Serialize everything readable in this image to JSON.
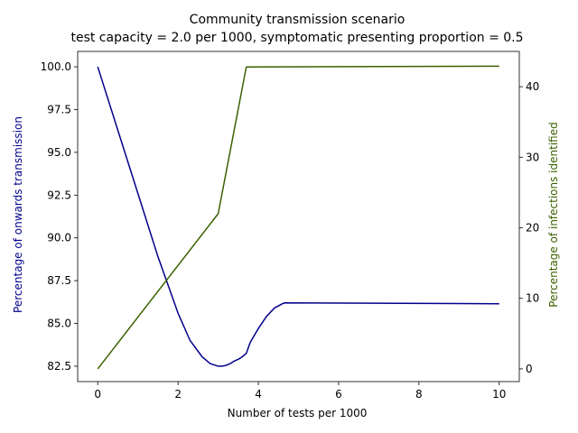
{
  "chart_data": {
    "type": "line",
    "title": "Community transmission scenario",
    "subtitle": "test capacity = 2.0 per 1000, symptomatic presenting proportion = 0.5",
    "xlabel": "Number of tests per 1000",
    "ylabel_left": "Percentage of onwards transmission",
    "ylabel_right": "Percentage of infections identified",
    "xlim": [
      -0.5,
      10.5
    ],
    "ylim_left": [
      81.6,
      100.9
    ],
    "ylim_right": [
      -1.8,
      45
    ],
    "x_ticks": [
      0,
      2,
      4,
      6,
      8,
      10
    ],
    "y_left_ticks": [
      82.5,
      85.0,
      87.5,
      90.0,
      92.5,
      95.0,
      97.5,
      100.0
    ],
    "y_left_tick_labels": [
      "82.5",
      "85.0",
      "87.5",
      "90.0",
      "92.5",
      "95.0",
      "97.5",
      "100.0"
    ],
    "y_right_ticks": [
      0,
      10,
      20,
      30,
      40
    ],
    "grid": false,
    "legend": "none",
    "series": [
      {
        "axis": "left",
        "color": "#00008b",
        "x": [
          0,
          0.5,
          1.0,
          1.5,
          2.0,
          2.3,
          2.6,
          2.8,
          3.0,
          3.1,
          3.2,
          3.3,
          3.4,
          3.5,
          3.6,
          3.7,
          3.8,
          3.9,
          4.0,
          4.2,
          4.4,
          4.6,
          4.65,
          10.0
        ],
        "values": [
          100.0,
          96.3,
          92.6,
          88.9,
          85.6,
          84.0,
          83.05,
          82.65,
          82.5,
          82.5,
          82.55,
          82.65,
          82.8,
          82.9,
          83.05,
          83.25,
          83.9,
          84.3,
          84.7,
          85.4,
          85.9,
          86.15,
          86.2,
          86.15
        ]
      },
      {
        "axis": "right",
        "color": "#3b6100",
        "x": [
          0,
          3.0,
          3.7,
          10.0
        ],
        "values": [
          0,
          22.0,
          42.8,
          42.9
        ]
      }
    ]
  }
}
